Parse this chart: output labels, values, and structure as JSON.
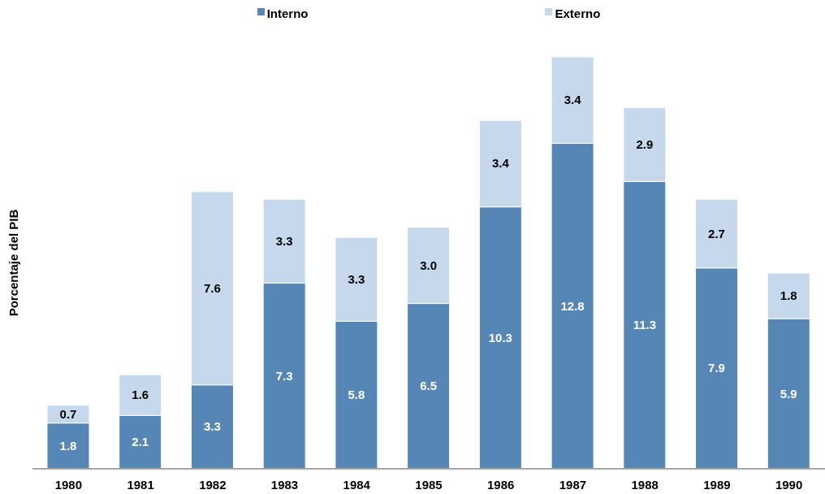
{
  "chart_data": {
    "type": "bar",
    "stacked": true,
    "ylabel": "Porcentaje del PIB",
    "legend": "top",
    "categories": [
      "1980",
      "1981",
      "1982",
      "1983",
      "1984",
      "1985",
      "1986",
      "1987",
      "1988",
      "1989",
      "1990"
    ],
    "series": [
      {
        "name": "Interno",
        "color": "#5686b6",
        "values": [
          1.8,
          2.1,
          3.3,
          7.3,
          5.8,
          6.5,
          10.3,
          12.8,
          11.3,
          7.9,
          5.9
        ],
        "value_labels": [
          "1.8",
          "2.1",
          "3.3",
          "7.3",
          "5.8",
          "6.5",
          "10.3",
          "12.8",
          "11.3",
          "7.9",
          "5.9"
        ]
      },
      {
        "name": "Externo",
        "color": "#c6d8eb",
        "values": [
          0.7,
          1.6,
          7.6,
          3.3,
          3.3,
          3.0,
          3.4,
          3.4,
          2.9,
          2.7,
          1.8
        ],
        "value_labels": [
          "0.7",
          "1.6",
          "7.6",
          "3.3",
          "3.3",
          "3.0",
          "3.4",
          "3.4",
          "2.9",
          "2.7",
          "1.8"
        ]
      }
    ]
  }
}
